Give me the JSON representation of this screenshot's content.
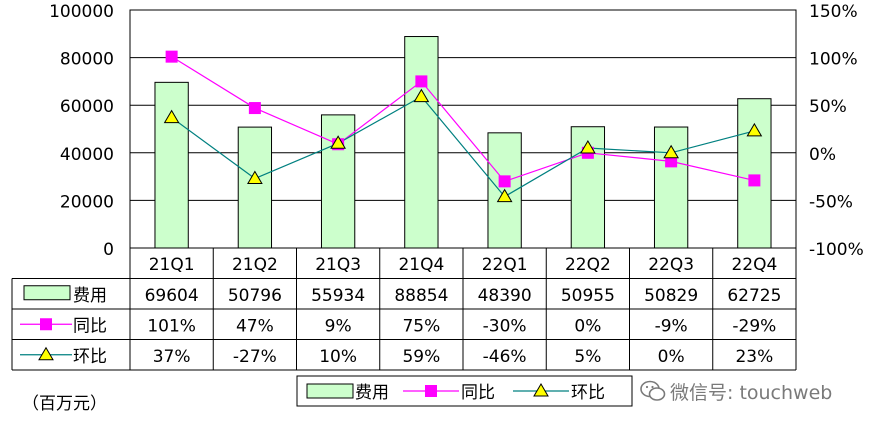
{
  "chart_data": {
    "type": "bar",
    "categories": [
      "21Q1",
      "21Q2",
      "21Q3",
      "21Q4",
      "22Q1",
      "22Q2",
      "22Q3",
      "22Q4"
    ],
    "series": [
      {
        "name": "费用",
        "type": "bar",
        "axis": "left",
        "values": [
          69604,
          50796,
          55934,
          88854,
          48390,
          50955,
          50829,
          62725
        ]
      },
      {
        "name": "同比",
        "type": "line",
        "axis": "right",
        "values": [
          101,
          47,
          9,
          75,
          -30,
          0,
          -9,
          -29
        ]
      },
      {
        "name": "环比",
        "type": "line",
        "axis": "right",
        "values": [
          37,
          -27,
          10,
          59,
          -46,
          5,
          0,
          23
        ]
      }
    ],
    "table_rows": [
      {
        "label": "费用",
        "cells": [
          "69604",
          "50796",
          "55934",
          "88854",
          "48390",
          "50955",
          "50829",
          "62725"
        ]
      },
      {
        "label": "同比",
        "cells": [
          "101%",
          "47%",
          "9%",
          "75%",
          "-30%",
          "0%",
          "-9%",
          "-29%"
        ]
      },
      {
        "label": "环比",
        "cells": [
          "37%",
          "-27%",
          "10%",
          "59%",
          "-46%",
          "5%",
          "0%",
          "23%"
        ]
      }
    ],
    "y_left": {
      "min": 0,
      "max": 100000,
      "ticks": [
        "0",
        "20000",
        "40000",
        "60000",
        "80000",
        "100000"
      ]
    },
    "y_right": {
      "min": -100,
      "max": 150,
      "ticks": [
        "-100%",
        "-50%",
        "0%",
        "50%",
        "100%",
        "150%"
      ]
    },
    "unit_note": "（百万元）",
    "legend": [
      "费用",
      "同比",
      "环比"
    ],
    "legend_position": "bottom",
    "grid": true,
    "colors": {
      "bar_fill": "#ccffcc",
      "bar_stroke": "#000000",
      "yoy": "#ff00ff",
      "qoq_line": "#008080",
      "qoq_marker": "#ffff00"
    }
  },
  "watermark": {
    "text": "微信号: touchweb",
    "icon": "wechat-icon"
  }
}
